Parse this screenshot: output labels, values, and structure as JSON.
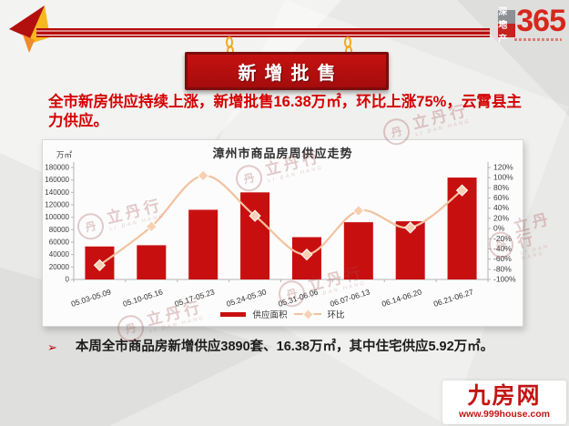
{
  "brand": {
    "name_top": "深度",
    "name_bottom": "地产",
    "number": "365"
  },
  "banner": {
    "title": "新增批售"
  },
  "headline": "全市新房供应持续上涨，新增批售16.38万㎡，环比上涨75%，云霄县主力供应。",
  "chart_data": {
    "type": "bar",
    "title": "漳州市商品房周供应走势",
    "categories": [
      "05.03-05.09",
      "05.10-05.16",
      "05.17-05.23",
      "05.24-05.30",
      "05.31-06.06",
      "06.07-06.13",
      "06.14-06.20",
      "06.21-06.27"
    ],
    "series": [
      {
        "name": "供应面积",
        "type": "bar",
        "axis": "left",
        "color": "#c80f10",
        "values": [
          53000,
          55000,
          112000,
          140000,
          68000,
          92000,
          93500,
          163800
        ]
      },
      {
        "name": "环比",
        "type": "line",
        "axis": "right",
        "color": "#f2c2a0",
        "marker_fill": "#f7d0b4",
        "values": [
          -72,
          4,
          104,
          25,
          -51,
          35,
          2,
          75
        ]
      }
    ],
    "left_axis": {
      "label": "万㎡",
      "min": 0,
      "max": 180000,
      "step": 20000
    },
    "right_axis": {
      "min": -100,
      "max": 120,
      "step": 20,
      "suffix": "%"
    },
    "legend_position": "bottom",
    "grid": false
  },
  "watermark": {
    "cn": "立丹行",
    "en": "LI DAN HANG",
    "mark": "丹"
  },
  "summary": {
    "bullet": "➢",
    "text": "本周全市商品房新增供应3890套、16.38万㎡，其中住宅供应5.92万㎡。"
  },
  "footer": {
    "site_name": "九房网",
    "site_url": "www.999house.com"
  }
}
